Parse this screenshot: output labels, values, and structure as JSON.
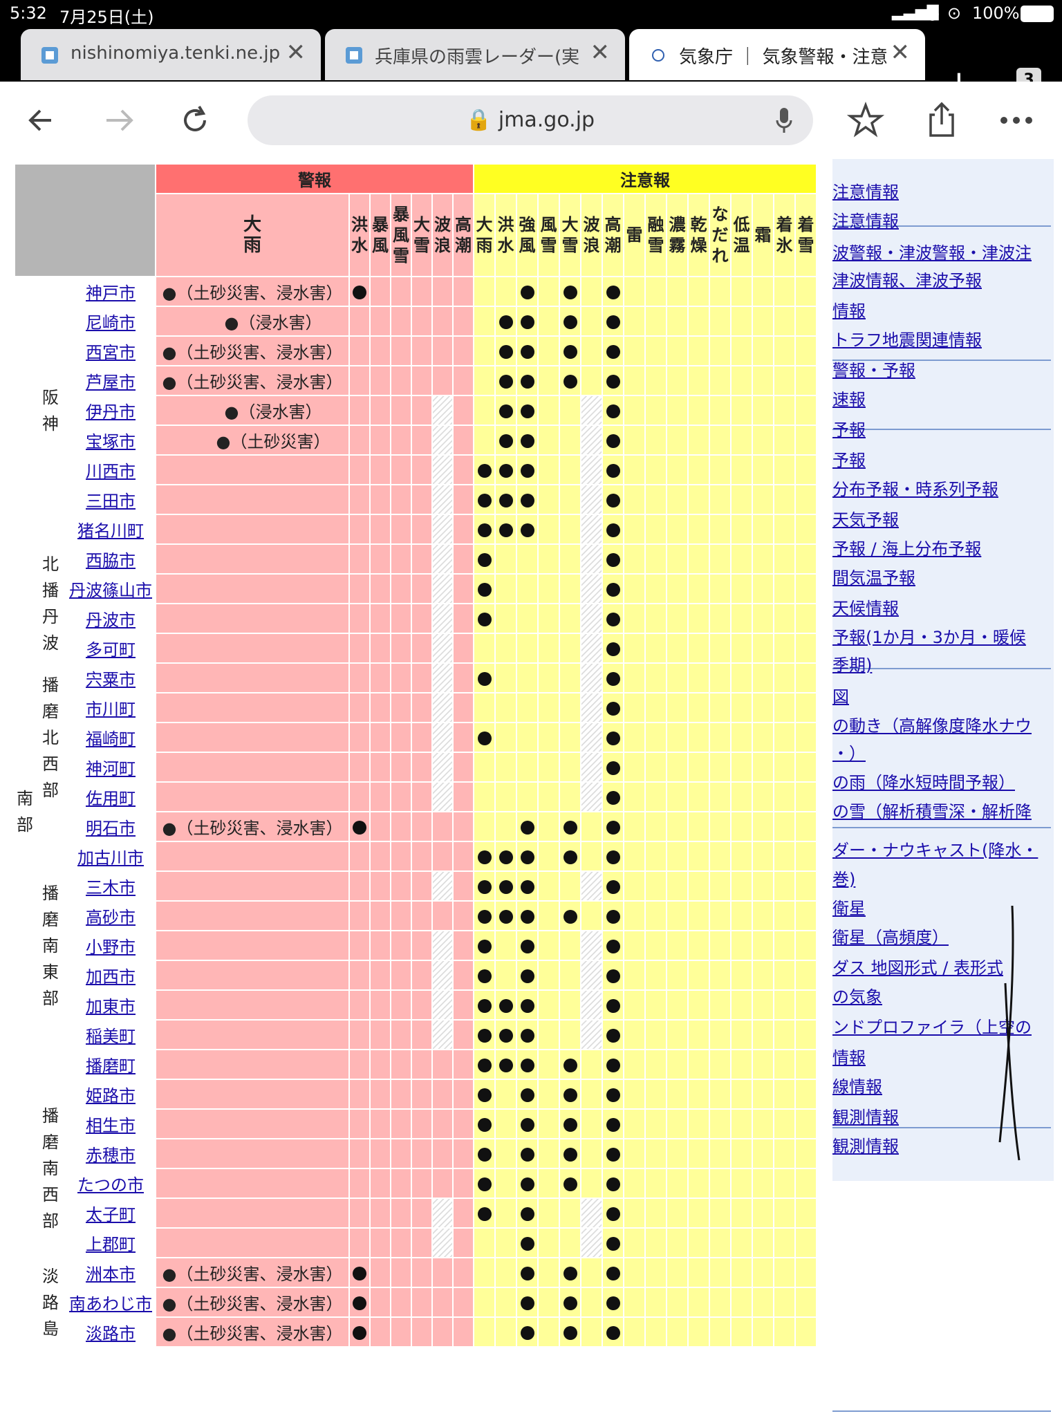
{
  "status": {
    "time": "5:32",
    "date": "7月25日(土)",
    "battery": "100%"
  },
  "tabs": [
    {
      "title": "nishinomiya.tenki.ne.jp",
      "icon": "tenki-favicon"
    },
    {
      "title": "兵庫県の雨雲レーダー(実",
      "icon": "tenki-favicon"
    },
    {
      "title": "気象庁 ｜ 気象警報・注意",
      "icon": "jma-favicon",
      "active": true
    }
  ],
  "tab_count": "3",
  "url": "jma.go.jp",
  "table": {
    "warn_header": "警報",
    "advisory_header": "注意報",
    "warn_cols": [
      "大\n雨",
      "洪\n水",
      "暴\n風",
      "暴\n風\n雪",
      "大\n雪",
      "波\n浪",
      "高\n潮"
    ],
    "adv_cols": [
      "大\n雨",
      "洪\n水",
      "強\n風",
      "風\n雪",
      "大\n雪",
      "波\n浪",
      "高\n潮",
      "雷",
      "融\n雪",
      "濃\n霧",
      "乾\n燥",
      "な\nだ\nれ",
      "低\n温",
      "霜",
      "着\n氷",
      "着\n雪"
    ],
    "region": "南\n部",
    "subregions": [
      {
        "name": "阪\n神",
        "rows": [
          {
            "city": "神戸市",
            "note": "●（土砂災害、浸水害）",
            "flood": true,
            "adv": [
              2,
              4,
              6
            ],
            "hatch": []
          },
          {
            "city": "尼崎市",
            "note": "●（浸水害）",
            "flood": false,
            "adv": [
              1,
              2,
              4,
              6
            ],
            "hatch": []
          },
          {
            "city": "西宮市",
            "note": "●（土砂災害、浸水害）",
            "flood": false,
            "adv": [
              1,
              2,
              4,
              6
            ],
            "hatch": []
          },
          {
            "city": "芦屋市",
            "note": "●（土砂災害、浸水害）",
            "flood": false,
            "adv": [
              1,
              2,
              4,
              6
            ],
            "hatch": []
          },
          {
            "city": "伊丹市",
            "note": "●（浸水害）",
            "flood": false,
            "adv": [
              1,
              2,
              6
            ],
            "hatch": [
              5,
              6,
              12,
              13
            ]
          },
          {
            "city": "宝塚市",
            "note": "●（土砂災害）",
            "flood": false,
            "adv": [
              1,
              2,
              6
            ],
            "hatch": [
              5,
              6,
              12,
              13
            ]
          },
          {
            "city": "川西市",
            "note": "",
            "flood": false,
            "adv": [
              0,
              1,
              2,
              6
            ],
            "hatch": [
              5,
              6,
              12,
              13
            ]
          },
          {
            "city": "三田市",
            "note": "",
            "flood": false,
            "adv": [
              0,
              1,
              2,
              6
            ],
            "hatch": [
              5,
              6,
              12,
              13
            ]
          },
          {
            "city": "猪名川町",
            "note": "",
            "flood": false,
            "adv": [
              0,
              1,
              2,
              6
            ],
            "hatch": [
              5,
              6,
              12,
              13
            ]
          }
        ]
      },
      {
        "name": "北\n播\n丹\n波",
        "rows": [
          {
            "city": "西脇市",
            "note": "",
            "flood": false,
            "adv": [
              0,
              6
            ],
            "hatch": [
              5,
              6,
              12,
              13
            ]
          },
          {
            "city": "丹波篠山市",
            "note": "",
            "flood": false,
            "adv": [
              0,
              6
            ],
            "hatch": [
              5,
              6,
              12,
              13
            ]
          },
          {
            "city": "丹波市",
            "note": "",
            "flood": false,
            "adv": [
              0,
              6
            ],
            "hatch": [
              5,
              6,
              12,
              13
            ]
          },
          {
            "city": "多可町",
            "note": "",
            "flood": false,
            "adv": [
              6
            ],
            "hatch": [
              5,
              6,
              12,
              13
            ]
          }
        ]
      },
      {
        "name": "播\n磨\n北\n西\n部",
        "rows": [
          {
            "city": "宍粟市",
            "note": "",
            "flood": false,
            "adv": [
              0,
              6
            ],
            "hatch": [
              5,
              6,
              12,
              13
            ]
          },
          {
            "city": "市川町",
            "note": "",
            "flood": false,
            "adv": [
              6
            ],
            "hatch": [
              5,
              6,
              12,
              13
            ]
          },
          {
            "city": "福崎町",
            "note": "",
            "flood": false,
            "adv": [
              0,
              6
            ],
            "hatch": [
              5,
              6,
              12,
              13
            ]
          },
          {
            "city": "神河町",
            "note": "",
            "flood": false,
            "adv": [
              6
            ],
            "hatch": [
              5,
              6,
              12,
              13
            ]
          },
          {
            "city": "佐用町",
            "note": "",
            "flood": false,
            "adv": [
              6
            ],
            "hatch": [
              5,
              6,
              12,
              13
            ]
          }
        ]
      },
      {
        "name": "播\n磨\n南\n東\n部",
        "rows": [
          {
            "city": "明石市",
            "note": "●（土砂災害、浸水害）",
            "flood": true,
            "adv": [
              2,
              4,
              6
            ],
            "hatch": []
          },
          {
            "city": "加古川市",
            "note": "",
            "flood": false,
            "adv": [
              0,
              1,
              2,
              4,
              6
            ],
            "hatch": []
          },
          {
            "city": "三木市",
            "note": "",
            "flood": false,
            "adv": [
              0,
              1,
              2,
              6
            ],
            "hatch": [
              5,
              6,
              12,
              13
            ]
          },
          {
            "city": "高砂市",
            "note": "",
            "flood": false,
            "adv": [
              0,
              1,
              2,
              4,
              6
            ],
            "hatch": []
          },
          {
            "city": "小野市",
            "note": "",
            "flood": false,
            "adv": [
              0,
              2,
              6
            ],
            "hatch": [
              5,
              6,
              12,
              13
            ]
          },
          {
            "city": "加西市",
            "note": "",
            "flood": false,
            "adv": [
              0,
              2,
              6
            ],
            "hatch": [
              5,
              6,
              12,
              13
            ]
          },
          {
            "city": "加東市",
            "note": "",
            "flood": false,
            "adv": [
              0,
              1,
              2,
              6
            ],
            "hatch": [
              5,
              6,
              12,
              13
            ]
          },
          {
            "city": "稲美町",
            "note": "",
            "flood": false,
            "adv": [
              0,
              1,
              2,
              6
            ],
            "hatch": [
              5,
              6,
              12,
              13
            ]
          },
          {
            "city": "播磨町",
            "note": "",
            "flood": false,
            "adv": [
              0,
              1,
              2,
              4,
              6
            ],
            "hatch": []
          }
        ]
      },
      {
        "name": "播\n磨\n南\n西\n部",
        "rows": [
          {
            "city": "姫路市",
            "note": "",
            "flood": false,
            "adv": [
              0,
              2,
              4,
              6
            ],
            "hatch": []
          },
          {
            "city": "相生市",
            "note": "",
            "flood": false,
            "adv": [
              0,
              2,
              4,
              6
            ],
            "hatch": []
          },
          {
            "city": "赤穂市",
            "note": "",
            "flood": false,
            "adv": [
              0,
              2,
              4,
              6
            ],
            "hatch": []
          },
          {
            "city": "たつの市",
            "note": "",
            "flood": false,
            "adv": [
              0,
              2,
              4,
              6
            ],
            "hatch": []
          },
          {
            "city": "太子町",
            "note": "",
            "flood": false,
            "adv": [
              0,
              2,
              6
            ],
            "hatch": [
              5,
              6,
              12,
              13
            ]
          },
          {
            "city": "上郡町",
            "note": "",
            "flood": false,
            "adv": [
              2,
              6
            ],
            "hatch": [
              5,
              6,
              12,
              13
            ]
          }
        ]
      },
      {
        "name": "淡\n路\n島",
        "rows": [
          {
            "city": "洲本市",
            "note": "●（土砂災害、浸水害）",
            "flood": true,
            "adv": [
              2,
              4,
              6
            ],
            "hatch": []
          },
          {
            "city": "南あわじ市",
            "note": "●（土砂災害、浸水害）",
            "flood": true,
            "adv": [
              2,
              4,
              6
            ],
            "hatch": []
          },
          {
            "city": "淡路市",
            "note": "●（土砂災害、浸水害）",
            "flood": true,
            "adv": [
              2,
              4,
              6
            ],
            "hatch": []
          }
        ]
      }
    ]
  },
  "sidebar": {
    "items": [
      "注意情報",
      "注意情報",
      "波警報・津波警報・津波注",
      "津波情報、津波予報",
      "情報",
      "トラフ地震関連情報",
      "警報・予報",
      "速報",
      "予報",
      "予報",
      "分布予報・時系列予報",
      "天気予報",
      "予報 / 海上分布予報",
      "間気温予報",
      "天候情報",
      "予報(1か月・3か月・暖候",
      "季期)",
      "図",
      "の動き（高解像度降水ナウ",
      "・）",
      "の雨（降水短時間予報）",
      "の雪（解析積雪深・解析降",
      "ダー・ナウキャスト(降水・",
      "巻)",
      "衛星",
      "衛星（高頻度）",
      "ダス 地図形式 / 表形式",
      "の気象",
      "ンドプロファイラ（上空の",
      "情報",
      "線情報",
      "観測情報",
      "観測情報"
    ]
  }
}
